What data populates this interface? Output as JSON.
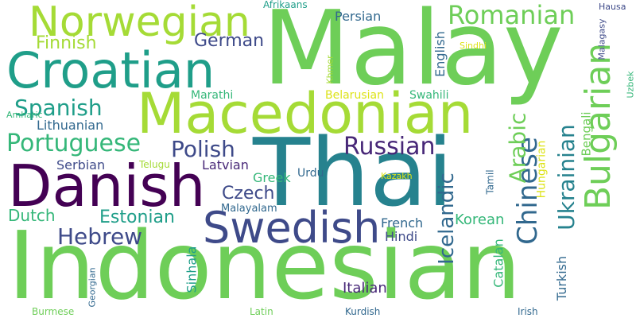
{
  "colors": {
    "background": "#ffffff",
    "lime": "#6ece58",
    "yellowgreen": "#a5db36",
    "green": "#35b779",
    "teal": "#1f9e89",
    "cyan": "#26828e",
    "blue": "#31688e",
    "indigo": "#3e4a89",
    "purple": "#482878",
    "darkpurple": "#440154",
    "yellow": "#dde318",
    "lightgreen": "#7ad151"
  },
  "words": {
    "indonesian": "Indonesian",
    "malay": "Malay",
    "thai": "Thai",
    "macedonian": "Macedonian",
    "croatian": "Croatian",
    "danish": "Danish",
    "norwegian": "Norwegian",
    "swedish": "Swedish",
    "bulgarian": "Bulgarian",
    "romanian": "Romanian",
    "portuguese": "Portuguese",
    "spanish": "Spanish",
    "polish": "Polish",
    "russian": "Russian",
    "hebrew": "Hebrew",
    "chinese": "Chinese",
    "ukrainian": "Ukrainian",
    "arabic": "Arabic",
    "icelandic": "Icelandic",
    "finnish": "Finnish",
    "german": "German",
    "estonian": "Estonian",
    "czech": "Czech",
    "lithuanian": "Lithuanian",
    "dutch": "Dutch",
    "latvian": "Latvian",
    "serbian": "Serbian",
    "persian": "Persian",
    "english": "English",
    "korean": "Korean",
    "french": "French",
    "hindi": "Hindi",
    "italian": "Italian",
    "turkish": "Turkish",
    "sinhala": "Sinhala",
    "catalan": "Catalan",
    "bengali": "Bengali",
    "greek": "Greek",
    "hungarian": "Hungarian",
    "marathi": "Marathi",
    "swahili": "Swahili",
    "belarusian": "Belarusian",
    "urdu": "Urdu",
    "malayalam": "Malayalam",
    "telugu": "Telugu",
    "kazakh": "Kazakh",
    "tamil": "Tamil",
    "afrikaans": "Afrikaans",
    "khmer": "Khmer",
    "sindhi": "Sindhi",
    "malagasy": "Malagasy",
    "hausa": "Hausa",
    "uzbek": "Uzbek",
    "amharic": "Amharic",
    "georgian": "Georgian",
    "burmese": "Burmese",
    "latin": "Latin",
    "kurdish": "Kurdish",
    "irish": "Irish"
  }
}
